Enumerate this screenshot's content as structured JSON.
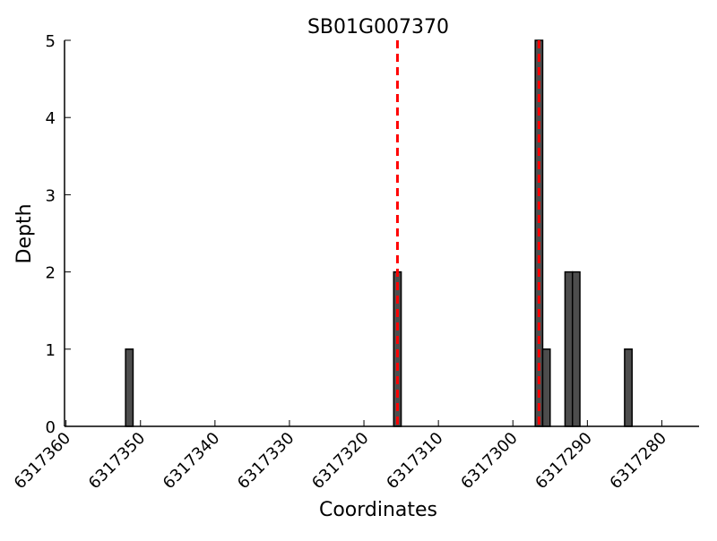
{
  "chart_data": {
    "type": "bar",
    "title": "SB01G007370",
    "xlabel": "Coordinates",
    "ylabel": "Depth",
    "xlim": [
      6317360.2,
      6317275
    ],
    "ylim": [
      0,
      5
    ],
    "x_ticks": [
      6317360,
      6317350,
      6317340,
      6317330,
      6317320,
      6317310,
      6317300,
      6317290,
      6317280
    ],
    "y_ticks": [
      0,
      1,
      2,
      3,
      4,
      5
    ],
    "bars": [
      {
        "x": 6317352,
        "value": 1
      },
      {
        "x": 6317316,
        "value": 2
      },
      {
        "x": 6317297,
        "value": 5
      },
      {
        "x": 6317296,
        "value": 1
      },
      {
        "x": 6317293,
        "value": 2
      },
      {
        "x": 6317292,
        "value": 2
      },
      {
        "x": 6317285,
        "value": 1
      }
    ],
    "bar_width": 1,
    "markers": [
      6317315.5,
      6317296.5
    ],
    "colors": {
      "bar": "#4d4d4d",
      "marker": "#ff0000"
    },
    "grid": false
  }
}
